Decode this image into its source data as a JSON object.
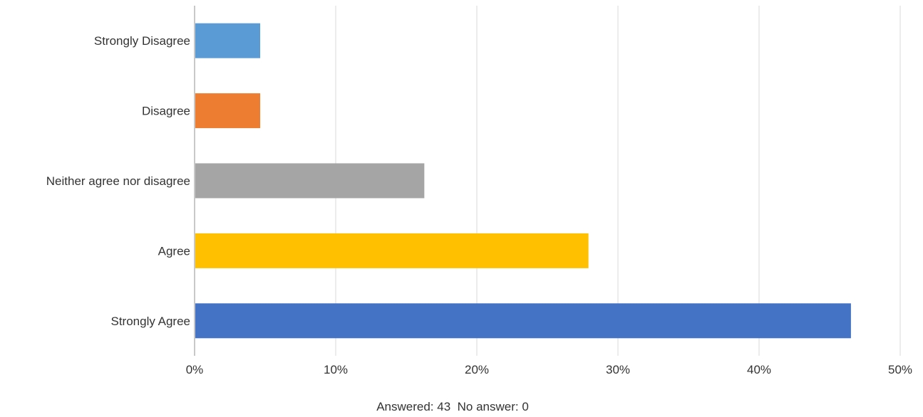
{
  "chart_data": {
    "type": "bar",
    "orientation": "horizontal",
    "categories": [
      "Strongly Disagree",
      "Disagree",
      "Neither agree nor disagree",
      "Agree",
      "Strongly Agree"
    ],
    "values": [
      4.65,
      4.65,
      16.28,
      27.91,
      46.51
    ],
    "colors": [
      "#5b9bd5",
      "#ed7d31",
      "#a5a5a5",
      "#ffc000",
      "#4472c4"
    ],
    "x_ticks": [
      "0%",
      "10%",
      "20%",
      "30%",
      "40%",
      "50%"
    ],
    "xlim": [
      0,
      50
    ],
    "grid": true,
    "legend": "none",
    "title": "",
    "xlabel": "",
    "ylabel": ""
  },
  "footer": {
    "answered_label": "Answered:",
    "answered_value": "43",
    "no_answer_label": "No answer:",
    "no_answer_value": "0"
  }
}
